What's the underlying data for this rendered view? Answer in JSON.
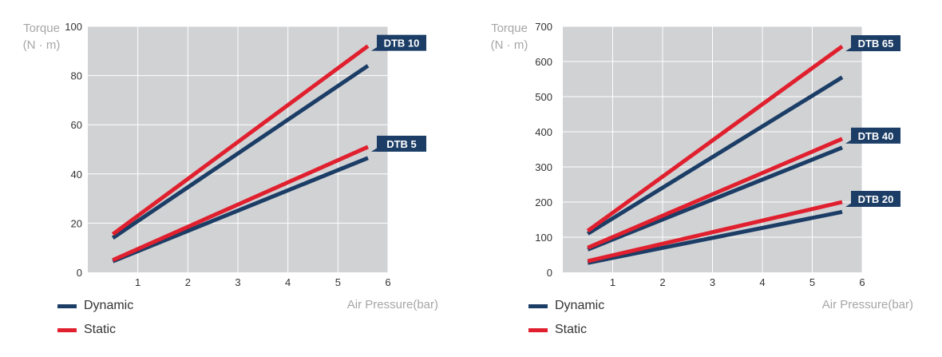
{
  "colors": {
    "plot_bg": "#d1d2d4",
    "grid": "#ffffff",
    "dynamic": "#1b3d66",
    "static": "#e0202e",
    "callout_bg": "#1b3d66",
    "axis_title": "#a6a6a6"
  },
  "legend": {
    "dynamic_label": "Dynamic",
    "static_label": "Static"
  },
  "chart_data": [
    {
      "type": "line",
      "ylabel_line1": "Torque",
      "ylabel_line2": "(N · m)",
      "xlabel": "Air Pressure(bar)",
      "xlim": [
        0,
        6
      ],
      "ylim": [
        0,
        100
      ],
      "xticks": [
        1,
        2,
        3,
        4,
        5,
        6
      ],
      "yticks": [
        0,
        20,
        40,
        60,
        80,
        100
      ],
      "grid": true,
      "legend_placement": "bottom-left",
      "series": [
        {
          "name": "Dynamic",
          "model": "DTB 10",
          "x": [
            0.5,
            5.6
          ],
          "y": [
            14,
            84
          ]
        },
        {
          "name": "Static",
          "model": "DTB 10",
          "x": [
            0.5,
            5.6
          ],
          "y": [
            15.5,
            92
          ]
        },
        {
          "name": "Dynamic",
          "model": "DTB 5",
          "x": [
            0.5,
            5.6
          ],
          "y": [
            4.5,
            46.5
          ]
        },
        {
          "name": "Static",
          "model": "DTB 5",
          "x": [
            0.5,
            5.6
          ],
          "y": [
            5,
            51
          ]
        }
      ],
      "annotations": [
        {
          "text": "DTB 10",
          "x": 5.6,
          "y": 92
        },
        {
          "text": "DTB 5",
          "x": 5.6,
          "y": 51
        }
      ]
    },
    {
      "type": "line",
      "ylabel_line1": "Torque",
      "ylabel_line2": "(N · m)",
      "xlabel": "Air Pressure(bar)",
      "xlim": [
        0,
        6
      ],
      "ylim": [
        0,
        700
      ],
      "xticks": [
        1,
        2,
        3,
        4,
        5,
        6
      ],
      "yticks": [
        0,
        100,
        200,
        300,
        400,
        500,
        600,
        700
      ],
      "grid": true,
      "legend_placement": "bottom-left",
      "series": [
        {
          "name": "Dynamic",
          "model": "DTB 65",
          "x": [
            0.5,
            5.6
          ],
          "y": [
            110,
            555
          ]
        },
        {
          "name": "Static",
          "model": "DTB 65",
          "x": [
            0.5,
            5.6
          ],
          "y": [
            118,
            643
          ]
        },
        {
          "name": "Dynamic",
          "model": "DTB 40",
          "x": [
            0.5,
            5.6
          ],
          "y": [
            65,
            355
          ]
        },
        {
          "name": "Static",
          "model": "DTB 40",
          "x": [
            0.5,
            5.6
          ],
          "y": [
            70,
            380
          ]
        },
        {
          "name": "Dynamic",
          "model": "DTB 20",
          "x": [
            0.5,
            5.6
          ],
          "y": [
            27,
            172
          ]
        },
        {
          "name": "Static",
          "model": "DTB 20",
          "x": [
            0.5,
            5.6
          ],
          "y": [
            32,
            200
          ]
        }
      ],
      "annotations": [
        {
          "text": "DTB 65",
          "x": 5.6,
          "y": 643
        },
        {
          "text": "DTB 40",
          "x": 5.6,
          "y": 380
        },
        {
          "text": "DTB 20",
          "x": 5.6,
          "y": 200
        }
      ]
    }
  ]
}
